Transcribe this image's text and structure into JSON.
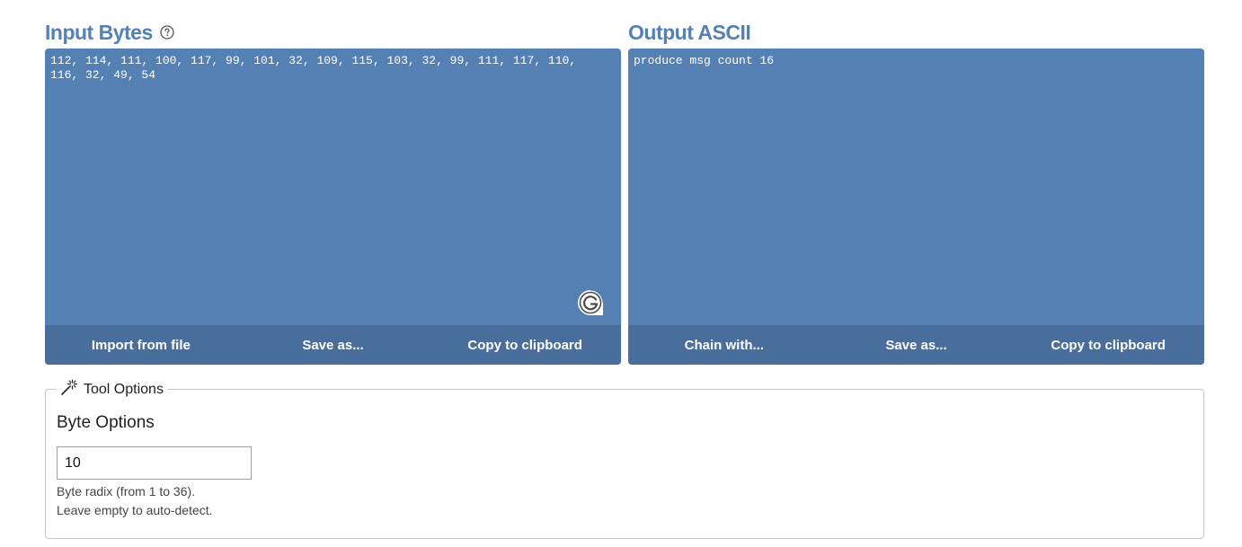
{
  "input": {
    "title": "Input Bytes",
    "help_icon": "question-circle-icon",
    "value": "112, 114, 111, 100, 117, 99, 101, 32, 109, 115, 103, 32, 99, 111, 117, 110,\n116, 32, 49, 54",
    "buttons": {
      "import": "Import from file",
      "save": "Save as...",
      "copy": "Copy to clipboard"
    }
  },
  "output": {
    "title": "Output ASCII",
    "value": "produce msg count 16",
    "buttons": {
      "chain": "Chain with...",
      "save": "Save as...",
      "copy": "Copy to clipboard"
    }
  },
  "tool_options": {
    "legend": "Tool Options",
    "legend_icon": "magic-wand-icon",
    "section_title": "Byte Options",
    "radix_value": "10",
    "hint_line1": "Byte radix (from 1 to 36).",
    "hint_line2": "Leave empty to auto-detect."
  },
  "colors": {
    "accent": "#5480b4",
    "panel_bg": "#5580b3",
    "footer_bg": "#4a6e9b"
  }
}
